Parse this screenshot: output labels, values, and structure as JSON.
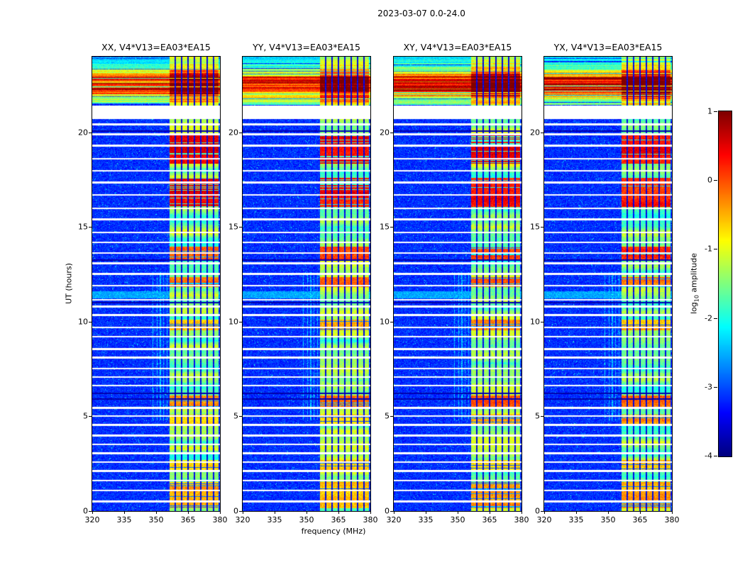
{
  "figure": {
    "title": "2023-03-07 0.0-24.0",
    "xlabel": "frequency (MHz)",
    "ylabel": "UT (hours)",
    "background": "#ffffff"
  },
  "colorbar": {
    "label_prefix": "log",
    "label_sub": "10",
    "label_suffix": " amplitude",
    "ticks": [
      "1",
      "0",
      "-1",
      "-2",
      "-3",
      "-4"
    ],
    "tick_values": [
      1,
      0,
      -1,
      -2,
      -3,
      -4
    ],
    "vmin": -4,
    "vmax": 1,
    "colormap": "jet"
  },
  "chart_data": {
    "type": "heatmap",
    "title": "2023-03-07 0.0-24.0",
    "panels": [
      {
        "pol": "XX",
        "title": "XX, V4*V13=EA03*EA15"
      },
      {
        "pol": "YY",
        "title": "YY, V4*V13=EA03*EA15"
      },
      {
        "pol": "XY",
        "title": "XY, V4*V13=EA03*EA15"
      },
      {
        "pol": "YX",
        "title": "YX, V4*V13=EA03*EA15"
      }
    ],
    "x": {
      "label": "frequency (MHz)",
      "min": 320,
      "max": 380,
      "ticks": [
        320,
        335,
        350,
        365,
        380
      ],
      "tick_labels": [
        "320",
        "335",
        "350",
        "365",
        "380"
      ],
      "unit": "MHz"
    },
    "y": {
      "label": "UT (hours)",
      "min": 0,
      "max": 24,
      "ticks": [
        0,
        5,
        10,
        15,
        20
      ],
      "tick_labels": [
        "0",
        "5",
        "10",
        "15",
        "20"
      ],
      "unit": "hours"
    },
    "color": {
      "label": "log10 amplitude",
      "min": -4,
      "max": 1,
      "ticks": [
        1,
        0,
        -1,
        -2,
        -3,
        -4
      ],
      "colormap": "jet"
    },
    "features": {
      "background_level": -3.4,
      "rfi_band": {
        "f_start": 356.4,
        "f_end": 379.4,
        "base_level": -1.45,
        "notch_freqs": [
          359,
          362,
          365,
          368,
          371,
          374,
          377
        ]
      },
      "broadband_event": {
        "t_start": 21.45,
        "t_end": 24.0,
        "peak_start": 22.15,
        "peak_end": 22.95,
        "decay_point": 23.45,
        "peak_level": 0.9
      },
      "data_gaps": [
        [
          20.72,
          21.42
        ]
      ],
      "thin_gap_times": [
        0.5,
        1.08,
        1.62,
        2.12,
        2.58,
        3.05,
        3.52,
        3.98,
        4.55,
        5.02,
        5.45,
        6.62,
        7.08,
        7.52,
        8.1,
        8.55,
        9.2,
        9.7,
        10.35,
        10.8,
        11.15,
        11.9,
        12.52,
        13.08,
        13.62,
        14.2,
        14.72,
        15.4,
        15.98,
        16.7,
        17.35,
        17.98,
        18.6,
        19.3,
        19.9,
        20.42
      ],
      "band_hot_windows": [
        [
          18.35,
          19.95,
          0.4
        ],
        [
          16.05,
          17.6,
          0.35
        ],
        [
          13.3,
          13.95,
          0.05
        ],
        [
          11.85,
          12.35,
          -0.3
        ],
        [
          9.55,
          10.1,
          -0.55
        ],
        [
          5.5,
          6.1,
          -0.25
        ],
        [
          4.5,
          5.1,
          -0.6
        ],
        [
          2.1,
          2.7,
          -0.75
        ],
        [
          0.15,
          1.55,
          -0.5
        ]
      ],
      "cyan_rows": [
        [
          11.25,
          11.62
        ]
      ],
      "dark_rows": [
        5.92,
        6.22,
        11.02,
        13.25,
        20.08
      ],
      "faint_columns": {
        "freqs": [
          348.6,
          350.4,
          352.0,
          353.6,
          355.2
        ],
        "t_start": 4.8,
        "t_end": 12.6
      }
    }
  }
}
